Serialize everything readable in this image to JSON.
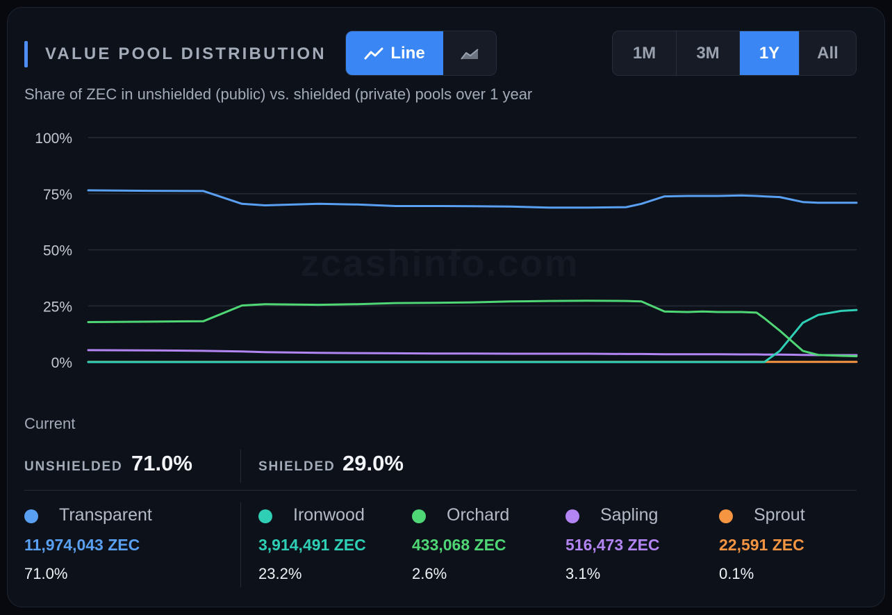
{
  "header": {
    "title": "VALUE POOL DISTRIBUTION",
    "subtitle": "Share of ZEC in unshielded (public) vs. shielded (private) pools over 1 year",
    "chart_toggle": {
      "line_label": "Line",
      "active": "line"
    },
    "ranges": [
      "1M",
      "3M",
      "1Y",
      "All"
    ],
    "active_range": "1Y"
  },
  "watermark": "zcashinfo.com",
  "summary": {
    "current_label": "Current",
    "unshielded_label": "UNSHIELDED",
    "unshielded_value": "71.0%",
    "shielded_label": "SHIELDED",
    "shielded_value": "29.0%"
  },
  "pools": [
    {
      "name": "Transparent",
      "amount": "11,974,043 ZEC",
      "percent": "71.0%",
      "color": "#5aa0f2"
    },
    {
      "name": "Ironwood",
      "amount": "3,914,491 ZEC",
      "percent": "23.2%",
      "color": "#2fcfb6"
    },
    {
      "name": "Orchard",
      "amount": "433,068 ZEC",
      "percent": "2.6%",
      "color": "#4fd675"
    },
    {
      "name": "Sapling",
      "amount": "516,473 ZEC",
      "percent": "3.1%",
      "color": "#b285f2"
    },
    {
      "name": "Sprout",
      "amount": "22,591 ZEC",
      "percent": "0.1%",
      "color": "#f59542"
    }
  ],
  "chart_data": {
    "type": "line",
    "ylim": [
      0,
      100
    ],
    "y_ticks": [
      "100%",
      "75%",
      "50%",
      "25%",
      "0%"
    ],
    "y_tick_values": [
      100,
      75,
      50,
      25,
      0
    ],
    "grid": true,
    "x": [
      0,
      8,
      15,
      20,
      23,
      30,
      35,
      40,
      45,
      50,
      55,
      60,
      65,
      70,
      72,
      75,
      78,
      80,
      82,
      85,
      87,
      88,
      90,
      93,
      95,
      98,
      100
    ],
    "series": [
      {
        "name": "Transparent",
        "color": "#5aa0f2",
        "values": [
          76.5,
          76.3,
          76.2,
          70.5,
          69.8,
          70.5,
          70.2,
          69.5,
          69.5,
          69.4,
          69.3,
          68.8,
          68.8,
          69.0,
          70.5,
          73.8,
          74.0,
          74.0,
          74.0,
          74.2,
          74.0,
          73.8,
          73.5,
          71.3,
          71.0,
          71.0,
          71.0
        ]
      },
      {
        "name": "Ironwood",
        "color": "#2fcfb6",
        "values": [
          0,
          0,
          0,
          0,
          0,
          0,
          0,
          0,
          0,
          0,
          0,
          0,
          0,
          0,
          0,
          0,
          0,
          0,
          0,
          0,
          0,
          0,
          5.0,
          17.5,
          21.0,
          22.8,
          23.2
        ]
      },
      {
        "name": "Orchard",
        "color": "#4fd675",
        "values": [
          17.8,
          18.0,
          18.2,
          25.2,
          25.8,
          25.5,
          25.8,
          26.3,
          26.4,
          26.6,
          27.0,
          27.2,
          27.3,
          27.2,
          27.0,
          22.5,
          22.3,
          22.5,
          22.3,
          22.3,
          22.0,
          19.5,
          14.0,
          5.0,
          3.2,
          2.8,
          2.6
        ]
      },
      {
        "name": "Sapling",
        "color": "#b285f2",
        "values": [
          5.3,
          5.2,
          5.0,
          4.7,
          4.4,
          4.1,
          4.0,
          3.9,
          3.8,
          3.8,
          3.7,
          3.7,
          3.7,
          3.6,
          3.6,
          3.5,
          3.5,
          3.5,
          3.5,
          3.4,
          3.4,
          3.3,
          3.3,
          3.2,
          3.1,
          3.1,
          3.1
        ]
      },
      {
        "name": "Sprout",
        "color": "#f59542",
        "values": [
          0.1,
          0.1,
          0.1,
          0.1,
          0.1,
          0.1,
          0.1,
          0.1,
          0.1,
          0.1,
          0.1,
          0.1,
          0.1,
          0.1,
          0.1,
          0.1,
          0.1,
          0.1,
          0.1,
          0.1,
          0.1,
          0.1,
          0.1,
          0.1,
          0.1,
          0.1,
          0.1
        ]
      }
    ]
  }
}
